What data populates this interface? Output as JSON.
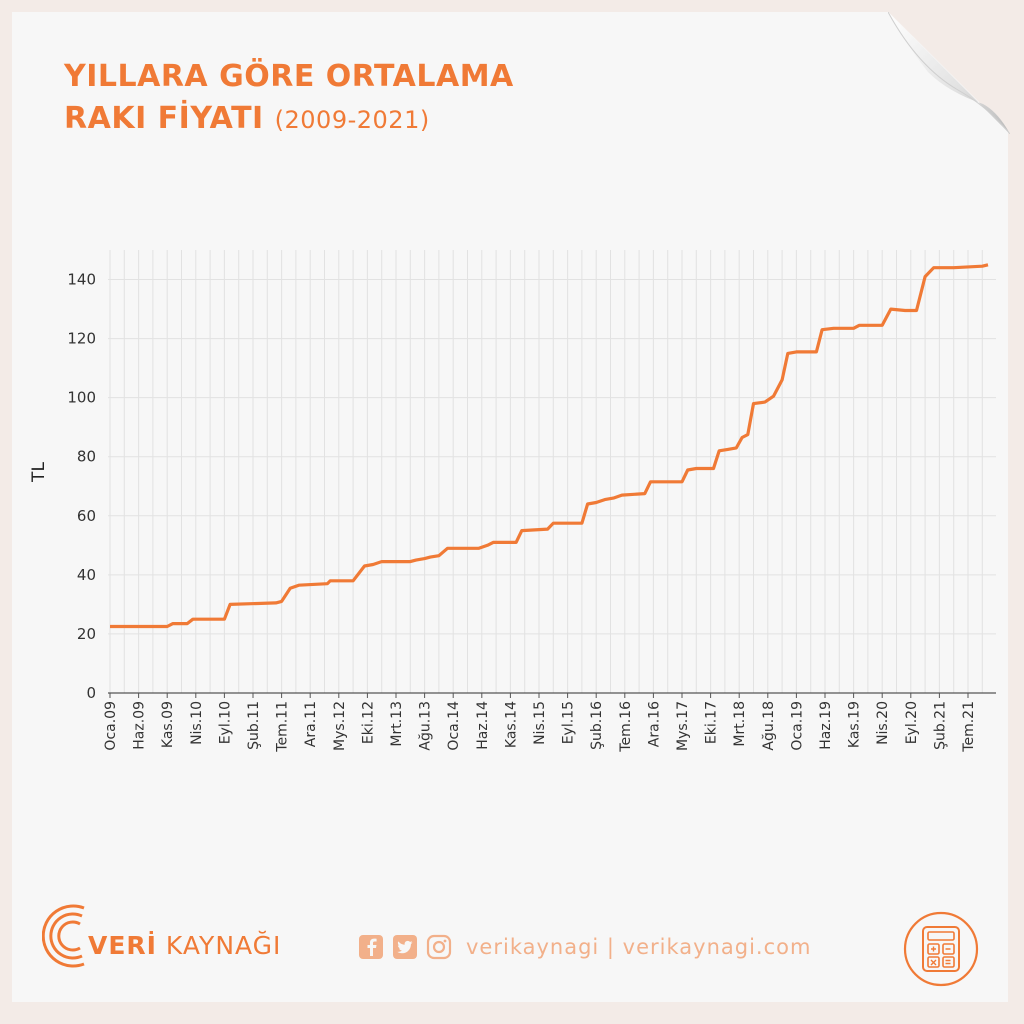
{
  "title": {
    "line1": "YILLARA GÖRE ORTALAMA",
    "line2": "RAKI FİYATI",
    "years": "(2009-2021)"
  },
  "chart_data": {
    "type": "line",
    "ylabel": "TL",
    "xlabel": "",
    "ylim": [
      0,
      150
    ],
    "yticks": [
      0,
      20,
      40,
      60,
      80,
      100,
      120,
      140
    ],
    "grid": true,
    "line_color": "#f07a36",
    "categories": [
      "Oca.09",
      "Haz.09",
      "Kas.09",
      "Nis.10",
      "Eyl.10",
      "Şub.11",
      "Tem.11",
      "Ara.11",
      "Mys.12",
      "Eki.12",
      "Mrt.13",
      "Ağu.13",
      "Oca.14",
      "Haz.14",
      "Kas.14",
      "Nis.15",
      "Eyl.15",
      "Şub.16",
      "Tem.16",
      "Ara.16",
      "Mys.17",
      "Eki.17",
      "Mrt.18",
      "Ağu.18",
      "Oca.19",
      "Haz.19",
      "Kas.19",
      "Nis.20",
      "Eyl.20",
      "Şub.21",
      "Tem.21"
    ],
    "series": [
      {
        "values": [
          [
            0,
            22.5
          ],
          [
            2,
            22.5
          ],
          [
            2.2,
            23.5
          ],
          [
            2.7,
            23.5
          ],
          [
            2.9,
            25
          ],
          [
            4,
            25
          ],
          [
            4.2,
            30
          ],
          [
            5.8,
            30.5
          ],
          [
            6,
            31
          ],
          [
            6.3,
            35.5
          ],
          [
            6.6,
            36.5
          ],
          [
            7.6,
            37
          ],
          [
            7.7,
            38
          ],
          [
            8.5,
            38
          ],
          [
            8.9,
            43
          ],
          [
            9.2,
            43.5
          ],
          [
            9.5,
            44.5
          ],
          [
            10.5,
            44.5
          ],
          [
            10.7,
            45
          ],
          [
            11.0,
            45.5
          ],
          [
            11.2,
            46
          ],
          [
            11.5,
            46.5
          ],
          [
            11.8,
            49
          ],
          [
            12.9,
            49
          ],
          [
            13.2,
            50
          ],
          [
            13.4,
            51
          ],
          [
            14.2,
            51
          ],
          [
            14.4,
            55
          ],
          [
            15.3,
            55.5
          ],
          [
            15.5,
            57.5
          ],
          [
            16.5,
            57.5
          ],
          [
            16.7,
            64
          ],
          [
            17.0,
            64.5
          ],
          [
            17.3,
            65.5
          ],
          [
            17.6,
            66
          ],
          [
            17.9,
            67
          ],
          [
            18.7,
            67.5
          ],
          [
            18.9,
            71.5
          ],
          [
            19.3,
            71.5
          ],
          [
            20.0,
            71.5
          ],
          [
            20.2,
            75.5
          ],
          [
            20.5,
            76
          ],
          [
            21.1,
            76
          ],
          [
            21.3,
            82
          ],
          [
            21.6,
            82.5
          ],
          [
            21.9,
            83
          ],
          [
            22.1,
            86.5
          ],
          [
            22.3,
            87.5
          ],
          [
            22.5,
            98
          ],
          [
            22.9,
            98.5
          ],
          [
            23.2,
            100.5
          ],
          [
            23.5,
            106
          ],
          [
            23.7,
            115
          ],
          [
            24.0,
            115.5
          ],
          [
            24.7,
            115.5
          ],
          [
            24.9,
            123
          ],
          [
            25.3,
            123.5
          ],
          [
            26.0,
            123.5
          ],
          [
            26.2,
            124.5
          ],
          [
            27.0,
            124.5
          ],
          [
            27.3,
            130
          ],
          [
            27.8,
            129.5
          ],
          [
            28.2,
            129.5
          ],
          [
            28.5,
            141
          ],
          [
            28.8,
            144
          ],
          [
            29.5,
            144
          ],
          [
            30.5,
            144.5
          ],
          [
            30.7,
            145
          ]
        ]
      }
    ]
  },
  "footer": {
    "brand_bold": "VERİ",
    "brand_rest": " KAYNAĞI",
    "handle": "verikaynagi | verikaynagi.com",
    "icons": [
      "facebook-icon",
      "twitter-icon",
      "instagram-icon",
      "calculator-icon"
    ]
  }
}
